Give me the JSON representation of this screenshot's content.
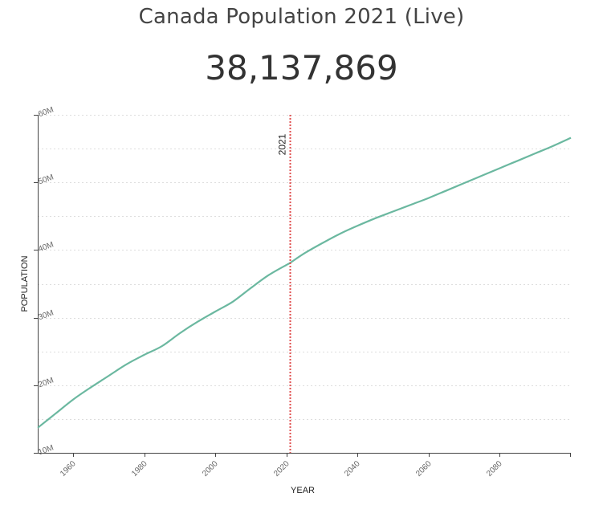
{
  "page": {
    "title": "Canada Population 2021 (Live)",
    "counter": "38,137,869"
  },
  "chart_data": {
    "type": "line",
    "title": "Canada Population 2021 (Live)",
    "xlabel": "YEAR",
    "ylabel": "POPULATION",
    "xlim": [
      1950,
      2100
    ],
    "ylim": [
      10000000,
      60000000
    ],
    "x_ticks": [
      1960,
      1980,
      2000,
      2020,
      2040,
      2060,
      2080
    ],
    "y_ticks": [
      10000000,
      20000000,
      30000000,
      40000000,
      50000000,
      60000000
    ],
    "y_tick_labels": [
      "10M",
      "20M",
      "30M",
      "40M",
      "50M",
      "60M"
    ],
    "grid": true,
    "marker": {
      "year": 2021,
      "label": "2021",
      "color": "#e05050"
    },
    "series": [
      {
        "name": "Population",
        "color": "#6bb8a0",
        "x": [
          1950,
          1955,
          1960,
          1965,
          1970,
          1975,
          1980,
          1985,
          1990,
          1995,
          2000,
          2005,
          2010,
          2015,
          2020,
          2021,
          2025,
          2030,
          2035,
          2040,
          2045,
          2050,
          2055,
          2060,
          2065,
          2070,
          2075,
          2080,
          2085,
          2090,
          2095,
          2100
        ],
        "values": [
          13700000,
          15800000,
          17900000,
          19700000,
          21400000,
          23100000,
          24500000,
          25800000,
          27700000,
          29400000,
          30900000,
          32400000,
          34400000,
          36300000,
          37800000,
          38100000,
          39500000,
          41000000,
          42400000,
          43600000,
          44700000,
          45700000,
          46700000,
          47700000,
          48800000,
          49900000,
          51000000,
          52100000,
          53200000,
          54300000,
          55400000,
          56600000
        ]
      }
    ]
  }
}
